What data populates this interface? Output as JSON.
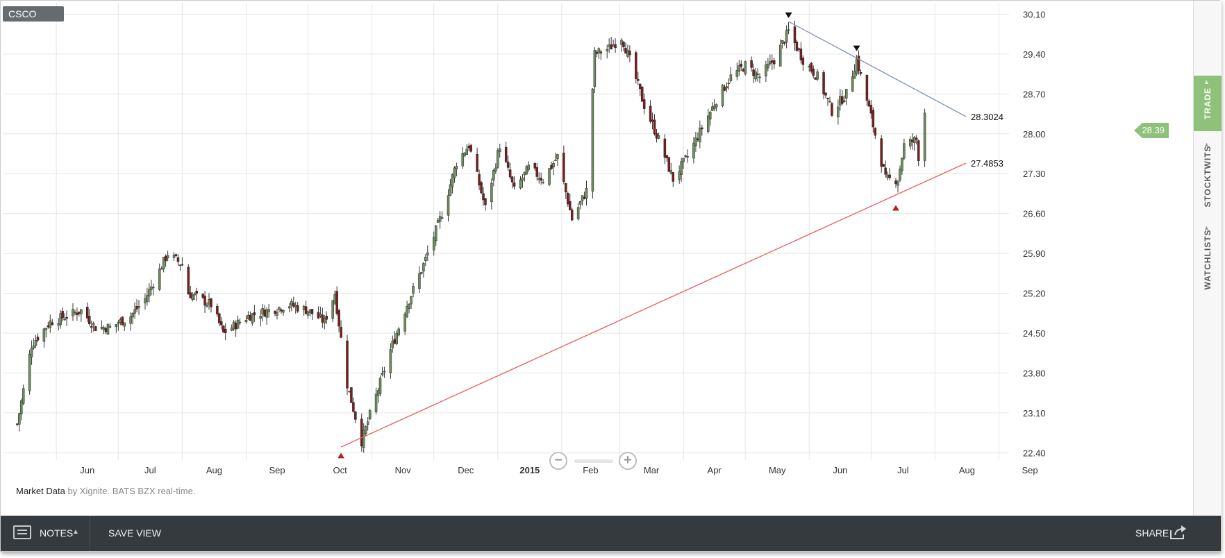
{
  "ticker": "CSCO",
  "attribution": {
    "prefix": "Market Data",
    "by": "by Xignite. BATS BZX real-time."
  },
  "current_price": "28.39",
  "sidebar": {
    "trade": "TRADE",
    "stocktwits": "STOCKTWITS",
    "watchlists": "WATCHLISTS"
  },
  "footer": {
    "notes": "NOTES",
    "save_view": "SAVE VIEW",
    "share": "SHARE"
  },
  "colors": {
    "up": "#6f8f5f",
    "down": "#7a1e1e",
    "wick": "#333333",
    "resistance": "#7d8fb8",
    "support": "#f05a5a",
    "trade_tab": "#8ec17a",
    "footer": "#353a3f"
  },
  "icons": {
    "notes": "notes-icon",
    "share": "share-icon",
    "zoom_out": "zoom-out-icon",
    "zoom_in": "zoom-in-icon"
  },
  "chart_data": {
    "type": "candlestick",
    "title": "CSCO",
    "ylim": [
      22.27,
      30.3
    ],
    "yticks": [
      22.4,
      23.1,
      23.8,
      24.5,
      25.2,
      25.9,
      26.6,
      27.3,
      28.0,
      28.7,
      29.4,
      30.1
    ],
    "ytick_labels": [
      "22.40",
      "23.10",
      "23.80",
      "24.50",
      "25.20",
      "25.90",
      "26.60",
      "27.30",
      "28.00",
      "28.70",
      "29.40",
      "30.10"
    ],
    "x_labels": [
      "Jun",
      "Jul",
      "Aug",
      "Sep",
      "Oct",
      "Nov",
      "Dec",
      "2015",
      "Feb",
      "Mar",
      "Apr",
      "May",
      "Jun",
      "Jul",
      "Aug",
      "Sep"
    ],
    "grid": true,
    "anchors": [
      [
        "2014-05-13",
        22.9
      ],
      [
        "2014-05-20",
        24.3
      ],
      [
        "2014-05-29",
        24.7
      ],
      [
        "2014-06-06",
        24.8
      ],
      [
        "2014-06-13",
        24.9
      ],
      [
        "2014-06-20",
        24.6
      ],
      [
        "2014-06-27",
        24.6
      ],
      [
        "2014-07-07",
        24.8
      ],
      [
        "2014-07-14",
        25.1
      ],
      [
        "2014-07-21",
        25.6
      ],
      [
        "2014-07-25",
        25.9
      ],
      [
        "2014-08-01",
        25.7
      ],
      [
        "2014-08-04",
        25.2
      ],
      [
        "2014-08-15",
        25.0
      ],
      [
        "2014-08-21",
        24.5
      ],
      [
        "2014-09-02",
        24.8
      ],
      [
        "2014-09-12",
        24.9
      ],
      [
        "2014-09-22",
        25.0
      ],
      [
        "2014-10-01",
        24.9
      ],
      [
        "2014-10-09",
        24.7
      ],
      [
        "2014-10-14",
        25.2
      ],
      [
        "2014-10-17",
        24.4
      ],
      [
        "2014-10-20",
        23.6
      ],
      [
        "2014-10-27",
        22.6
      ],
      [
        "2014-11-03",
        23.4
      ],
      [
        "2014-11-10",
        24.2
      ],
      [
        "2014-11-18",
        25.0
      ],
      [
        "2014-11-26",
        25.7
      ],
      [
        "2014-12-05",
        26.6
      ],
      [
        "2014-12-12",
        27.5
      ],
      [
        "2014-12-18",
        27.8
      ],
      [
        "2014-12-26",
        26.7
      ],
      [
        "2015-01-02",
        27.8
      ],
      [
        "2015-01-09",
        27.0
      ],
      [
        "2015-01-16",
        27.4
      ],
      [
        "2015-01-23",
        27.2
      ],
      [
        "2015-01-30",
        27.6
      ],
      [
        "2015-02-06",
        26.5
      ],
      [
        "2015-02-13",
        27.0
      ],
      [
        "2015-02-17",
        29.4
      ],
      [
        "2015-02-24",
        29.5
      ],
      [
        "2015-03-02",
        29.7
      ],
      [
        "2015-03-06",
        29.3
      ],
      [
        "2015-03-13",
        28.5
      ],
      [
        "2015-03-20",
        27.9
      ],
      [
        "2015-03-27",
        27.2
      ],
      [
        "2015-04-03",
        27.6
      ],
      [
        "2015-04-10",
        28.1
      ],
      [
        "2015-04-17",
        28.6
      ],
      [
        "2015-04-24",
        29.0
      ],
      [
        "2015-05-01",
        29.2
      ],
      [
        "2015-05-08",
        29.0
      ],
      [
        "2015-05-15",
        29.3
      ],
      [
        "2015-05-22",
        29.8
      ],
      [
        "2015-05-29",
        29.3
      ],
      [
        "2015-06-05",
        29.0
      ],
      [
        "2015-06-12",
        28.4
      ],
      [
        "2015-06-19",
        28.7
      ],
      [
        "2015-06-24",
        29.3
      ],
      [
        "2015-07-01",
        28.3
      ],
      [
        "2015-07-08",
        27.2
      ],
      [
        "2015-07-14",
        27.2
      ],
      [
        "2015-07-17",
        27.8
      ],
      [
        "2015-07-23",
        27.9
      ],
      [
        "2015-07-24",
        27.6
      ],
      [
        "2015-07-27",
        28.39
      ]
    ],
    "annotations": [
      {
        "type": "trendline",
        "name": "resistance",
        "label": "28.3024",
        "from": [
          "2015-05-22",
          29.97
        ],
        "to": [
          "2015-08-16",
          28.3024
        ]
      },
      {
        "type": "trendline",
        "name": "support",
        "label": "27.4853",
        "from": [
          "2014-10-17",
          22.5
        ],
        "to": [
          "2015-08-16",
          27.4853
        ]
      },
      {
        "type": "marker",
        "shape": "down-triangle",
        "at": [
          "2015-05-22",
          30.08
        ]
      },
      {
        "type": "marker",
        "shape": "down-triangle",
        "at": [
          "2015-06-24",
          29.5
        ]
      },
      {
        "type": "marker",
        "shape": "up-triangle",
        "at": [
          "2014-10-17",
          22.35
        ]
      },
      {
        "type": "marker",
        "shape": "up-triangle",
        "at": [
          "2015-07-13",
          26.7
        ]
      }
    ]
  }
}
